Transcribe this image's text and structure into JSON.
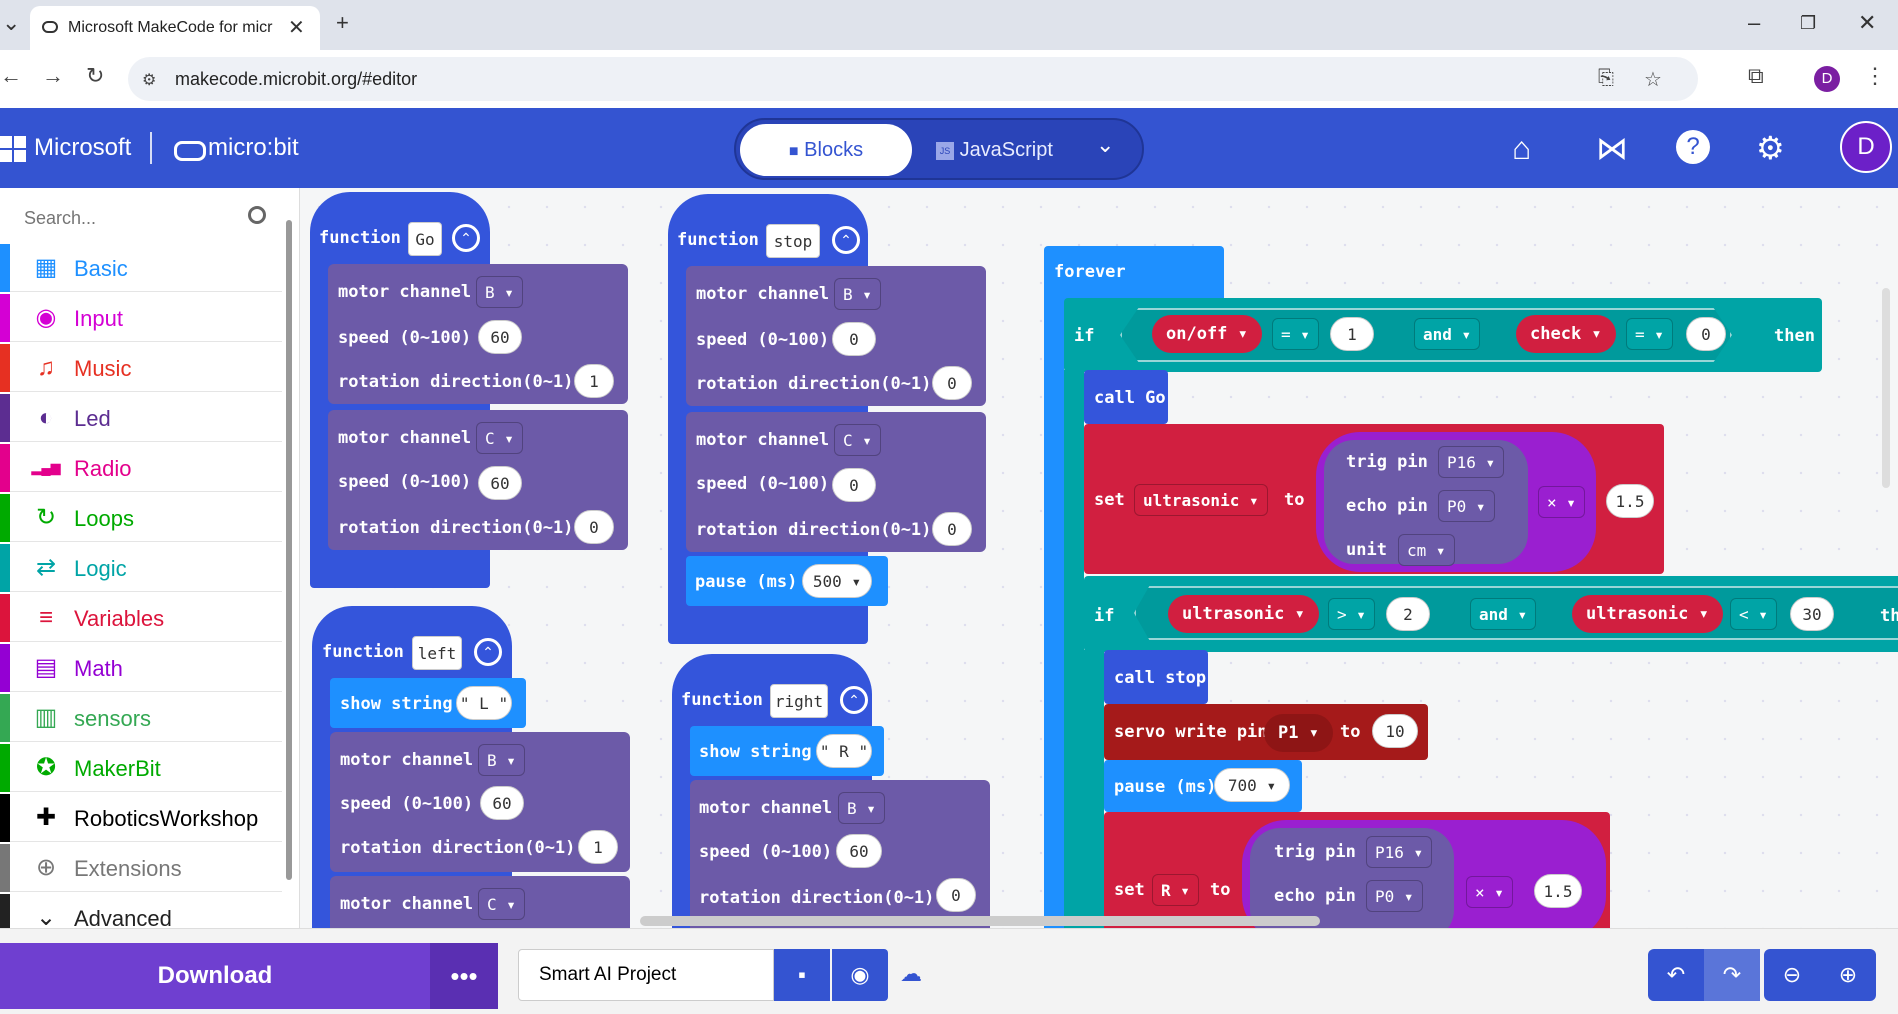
{
  "browser": {
    "tab_title": "Microsoft MakeCode for micro:bit",
    "url": "makecode.microbit.org/#editor",
    "profile_initial": "D"
  },
  "header": {
    "ms_label": "Microsoft",
    "product": "micro:bit",
    "blocks_label": "Blocks",
    "js_label": "JavaScript",
    "user_initial": "D"
  },
  "toolbox": {
    "search_placeholder": "Search...",
    "categories": [
      {
        "label": "Basic",
        "color": "#1e90ff",
        "icon": "grid-icon"
      },
      {
        "label": "Input",
        "color": "#d400d4",
        "icon": "target-icon"
      },
      {
        "label": "Music",
        "color": "#e63022",
        "icon": "headphones-icon"
      },
      {
        "label": "Led",
        "color": "#5c2d91",
        "icon": "toggle-icon"
      },
      {
        "label": "Radio",
        "color": "#e3008c",
        "icon": "signal-icon"
      },
      {
        "label": "Loops",
        "color": "#00aa00",
        "icon": "refresh-icon"
      },
      {
        "label": "Logic",
        "color": "#00a4a6",
        "icon": "shuffle-icon"
      },
      {
        "label": "Variables",
        "color": "#dc143c",
        "icon": "list-icon"
      },
      {
        "label": "Math",
        "color": "#9400d3",
        "icon": "calculator-icon"
      },
      {
        "label": "sensors",
        "color": "#34a853",
        "icon": "chip-icon"
      },
      {
        "label": "MakerBit",
        "color": "#00aa00",
        "icon": "star-icon"
      },
      {
        "label": "RoboticsWorkshop",
        "color": "#000000",
        "icon": "puzzle-icon"
      },
      {
        "label": "Extensions",
        "color": "#777777",
        "icon": "plus-icon"
      },
      {
        "label": "Advanced",
        "color": "#222222",
        "icon": "chevron-icon"
      }
    ]
  },
  "blocks": {
    "fn_go": {
      "kw": "function",
      "name": "Go"
    },
    "fn_stop": {
      "kw": "function",
      "name": "stop"
    },
    "fn_left": {
      "kw": "function",
      "name": "left"
    },
    "fn_right": {
      "kw": "function",
      "name": "right"
    },
    "motor_channel": "motor channel",
    "speed": "speed (0~100)",
    "rotation": "rotation direction(0~1)",
    "show_string": "show string",
    "pause": "pause (ms)",
    "go_vals": {
      "ch1": "B",
      "sp1": "60",
      "rot1": "1",
      "ch2": "C",
      "sp2": "60",
      "rot2": "0"
    },
    "stop_vals": {
      "ch1": "B",
      "sp1": "0",
      "rot1": "0",
      "ch2": "C",
      "sp2": "0",
      "rot2": "0",
      "pause": "500"
    },
    "left_vals": {
      "str": "\" L \"",
      "ch1": "B",
      "sp1": "60",
      "rot1": "1",
      "ch2": "C"
    },
    "right_vals": {
      "str": "\" R \"",
      "ch1": "B",
      "sp1": "60",
      "rot1": "0"
    },
    "forever": "forever",
    "if": "if",
    "then": "then",
    "and": "and",
    "onoff": "on/off",
    "eq": "=",
    "one": "1",
    "check": "check",
    "zero": "0",
    "call_go": "call Go",
    "set": "set",
    "to": "to",
    "ultrasonic": "ultrasonic",
    "trig_pin": "trig pin",
    "p16": "P16",
    "echo_pin": "echo pin",
    "p0": "P0",
    "unit": "unit",
    "cm": "cm",
    "times": "×",
    "factor": "1.5",
    "gt": ">",
    "two": "2",
    "lt": "<",
    "thirty": "30",
    "then_cut": "th",
    "call_stop": "call stop",
    "servo": "servo write pin",
    "p1": "P1",
    "ten": "10",
    "pause700": "700",
    "r_var": "R"
  },
  "bottom": {
    "download": "Download",
    "more": "•••",
    "project_name": "Smart AI Project"
  }
}
